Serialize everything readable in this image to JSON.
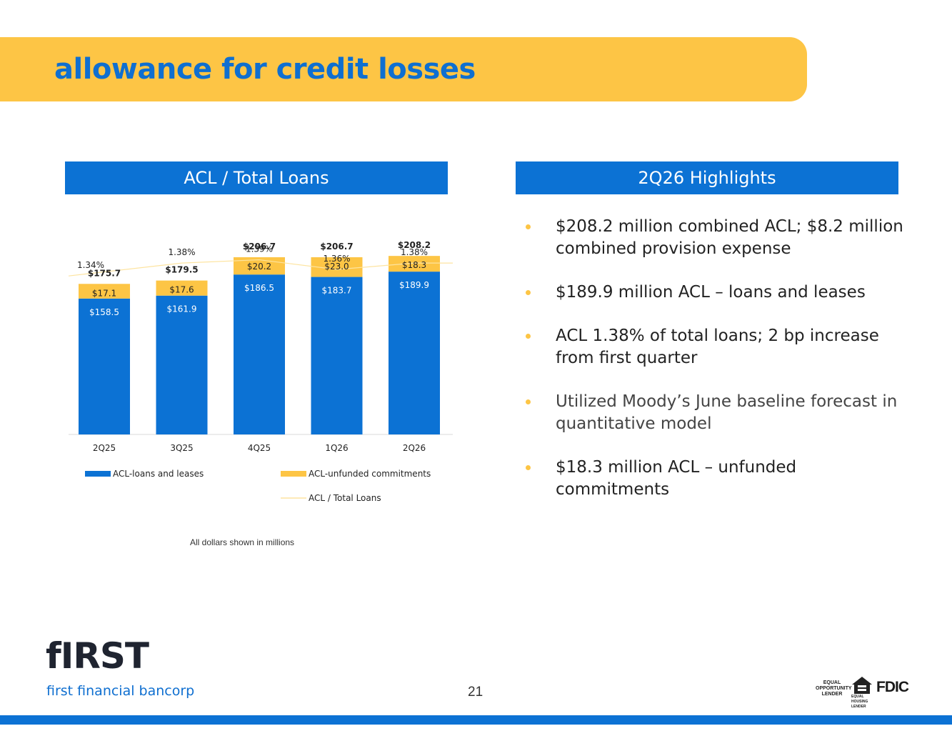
{
  "page": {
    "title": "allowance for credit losses",
    "page_number": "21"
  },
  "left_panel": {
    "header": "ACL / Total Loans",
    "footnote": "All dollars shown in millions"
  },
  "right_panel": {
    "header": "2Q26 Highlights",
    "bullets": [
      "$208.2 million combined ACL; $8.2 million combined provision expense",
      "$189.9 million ACL – loans and leases",
      "ACL 1.38% of total loans; 2 bp increase from first quarter",
      "Utilized Moody’s June baseline forecast in quantitative model",
      "$18.3 million ACL – unfunded commitments"
    ]
  },
  "footer": {
    "logo_text": "fIRST",
    "logo_subtitle": "first financial bancorp",
    "badge_equal_opportunity": "EQUAL OPPORTUNITY LENDER",
    "badge_equal_housing": "EQUAL HOUSING LENDER",
    "badge_fdic": "FDIC"
  },
  "colors": {
    "brand_blue": "#0c72d4",
    "brand_yellow": "#fdc545",
    "line": "#fde4a0"
  },
  "chart_data": {
    "type": "bar",
    "stacked": true,
    "title": "ACL / Total Loans",
    "categories": [
      "2Q25",
      "3Q25",
      "4Q25",
      "1Q26",
      "2Q26"
    ],
    "series": [
      {
        "name": "ACL-loans and leases",
        "color": "#0c72d4",
        "values": [
          158.5,
          161.9,
          186.5,
          183.7,
          189.9
        ],
        "labels": [
          "$158.5",
          "$161.9",
          "$186.5",
          "$183.7",
          "$189.9"
        ]
      },
      {
        "name": "ACL-unfunded commitments",
        "color": "#fdc545",
        "values": [
          17.1,
          17.6,
          20.2,
          23.0,
          18.3
        ],
        "labels": [
          "$17.1",
          "$17.6",
          "$20.2",
          "$23.0",
          "$18.3"
        ]
      }
    ],
    "totals": [
      "$175.7",
      "$179.5",
      "$206.7",
      "$206.7",
      "$208.2"
    ],
    "line_series": {
      "name": "ACL / Total Loans",
      "values": [
        1.34,
        1.38,
        1.39,
        1.36,
        1.38
      ],
      "labels": [
        "1.34%",
        "1.38%",
        "1.39%",
        "1.36%",
        "1.38%"
      ]
    },
    "ylim": [
      0,
      265
    ],
    "line_ylim": [
      1.0,
      1.42
    ],
    "legend_position": "bottom",
    "grid": false
  }
}
